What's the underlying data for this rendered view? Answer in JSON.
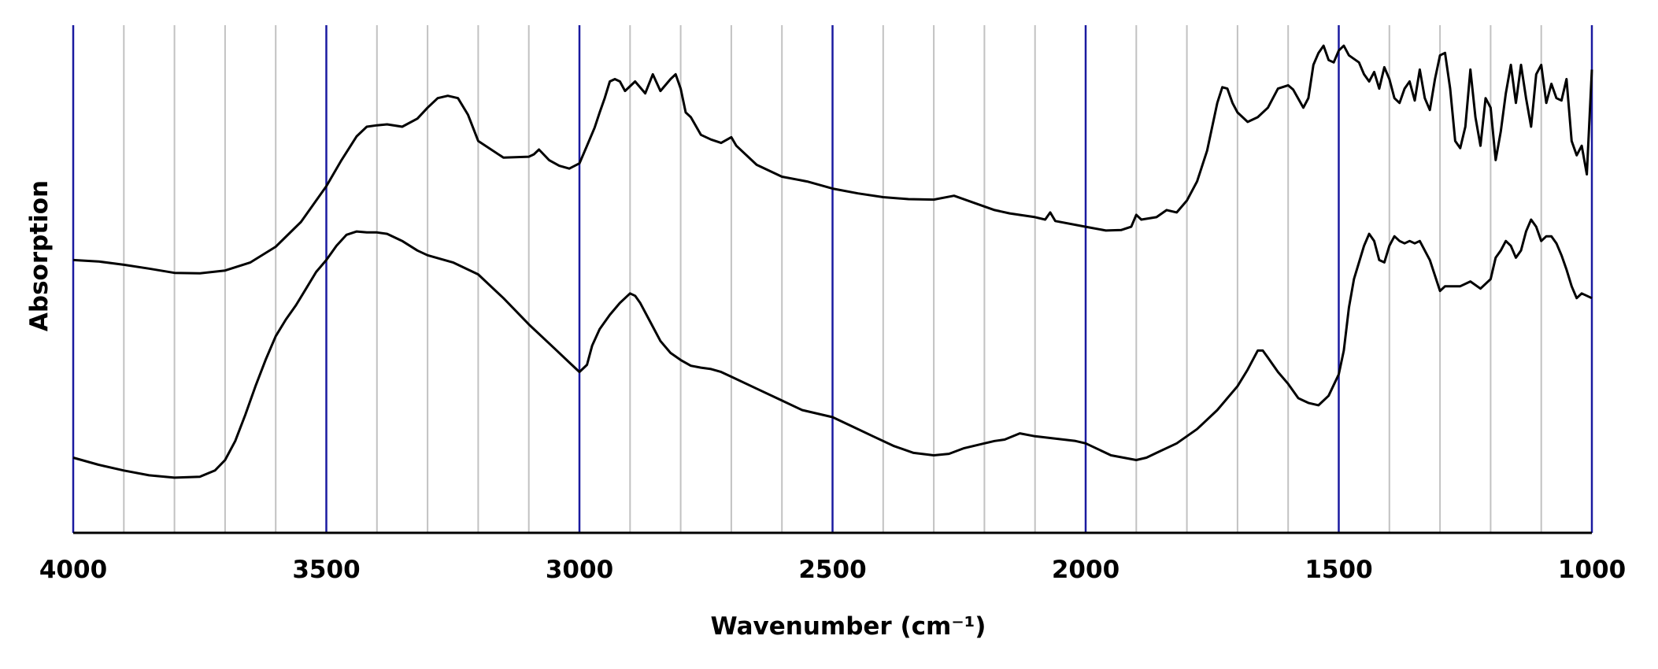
{
  "chart_data": {
    "type": "line",
    "xlabel": "Wavenumber (cm⁻¹)",
    "ylabel": "Absorption",
    "xlim": [
      4000,
      1000
    ],
    "x_reversed": true,
    "y_tick_labels": false,
    "major_ticks": [
      "4000",
      "3500",
      "3000",
      "2500",
      "2000",
      "1500",
      "1000"
    ],
    "major_tick_values": [
      4000,
      3500,
      3000,
      2500,
      2000,
      1500,
      1000
    ],
    "minor_grid_step": 100,
    "major_grid_color": "#1a1aa0",
    "minor_grid_color": "#c2c2c2",
    "line_color": "#000000",
    "ylim": [
      0,
      100
    ],
    "series": [
      {
        "x": [
          4000,
          3950,
          3900,
          3850,
          3800,
          3750,
          3700,
          3650,
          3600,
          3550,
          3500,
          3470,
          3440,
          3420,
          3400,
          3380,
          3350,
          3320,
          3300,
          3280,
          3260,
          3240,
          3220,
          3200,
          3150,
          3100,
          3090,
          3080,
          3060,
          3040,
          3020,
          3000,
          2985,
          2970,
          2960,
          2950,
          2940,
          2930,
          2920,
          2910,
          2890,
          2870,
          2855,
          2840,
          2820,
          2810,
          2800,
          2790,
          2780,
          2760,
          2740,
          2720,
          2700,
          2690,
          2650,
          2600,
          2550,
          2500,
          2450,
          2400,
          2350,
          2300,
          2260,
          2220,
          2180,
          2150,
          2100,
          2080,
          2070,
          2060,
          2000,
          1960,
          1930,
          1910,
          1900,
          1890,
          1860,
          1840,
          1820,
          1800,
          1780,
          1760,
          1740,
          1730,
          1720,
          1710,
          1700,
          1680,
          1660,
          1640,
          1620,
          1600,
          1590,
          1570,
          1560,
          1550,
          1540,
          1530,
          1520,
          1510,
          1500,
          1490,
          1480,
          1460,
          1450,
          1440,
          1430,
          1420,
          1410,
          1400,
          1390,
          1380,
          1370,
          1360,
          1350,
          1340,
          1330,
          1320,
          1310,
          1300,
          1290,
          1280,
          1270,
          1260,
          1250,
          1240,
          1230,
          1220,
          1210,
          1200,
          1190,
          1180,
          1170,
          1160,
          1150,
          1140,
          1130,
          1120,
          1110,
          1100,
          1090,
          1080,
          1070,
          1060,
          1050,
          1040,
          1030,
          1020,
          1010,
          1000
        ],
        "y": [
          52.0,
          51.7,
          51.0,
          50.2,
          49.3,
          49.2,
          49.8,
          51.5,
          54.8,
          60.0,
          67.5,
          73.0,
          78.0,
          80.0,
          80.3,
          80.5,
          80.0,
          81.7,
          84.0,
          86.0,
          86.5,
          86.0,
          82.5,
          77.0,
          73.5,
          73.7,
          74.2,
          75.2,
          73.0,
          71.8,
          71.2,
          72.3,
          76.0,
          79.8,
          83.0,
          86.0,
          89.5,
          90.0,
          89.5,
          87.5,
          89.5,
          87.0,
          91.0,
          87.5,
          90.0,
          91.0,
          88.0,
          83.0,
          82.0,
          78.3,
          77.3,
          76.6,
          77.8,
          76.0,
          72.0,
          69.5,
          68.5,
          67.0,
          66.0,
          65.2,
          64.8,
          64.7,
          65.5,
          64.0,
          62.5,
          61.8,
          61.0,
          60.5,
          62.0,
          60.2,
          59.0,
          58.2,
          58.3,
          59.0,
          61.5,
          60.5,
          61.0,
          62.5,
          62.0,
          64.5,
          68.5,
          75.0,
          85.0,
          88.3,
          88.0,
          85.0,
          83.0,
          81.0,
          82.0,
          84.0,
          88.0,
          88.7,
          87.8,
          84.0,
          86.0,
          93.0,
          95.5,
          97.0,
          94.0,
          93.5,
          96.0,
          97.0,
          95.0,
          93.5,
          91.0,
          89.5,
          91.5,
          88.0,
          92.5,
          90.0,
          86.0,
          85.0,
          88.0,
          89.5,
          85.5,
          92.0,
          86.0,
          83.5,
          90.0,
          95.0,
          95.5,
          88.0,
          77.0,
          75.5,
          80.0,
          92.0,
          82.0,
          76.0,
          86.0,
          84.0,
          73.0,
          79.0,
          87.0,
          93.0,
          85.0,
          93.0,
          86.0,
          80.0,
          91.0,
          93.0,
          85.0,
          89.0,
          86.0,
          85.5,
          90.0,
          77.0,
          74.0,
          76.0,
          70.0,
          92.0
        ]
      },
      {
        "x": [
          4000,
          3950,
          3900,
          3850,
          3800,
          3750,
          3720,
          3700,
          3680,
          3660,
          3640,
          3620,
          3600,
          3580,
          3560,
          3540,
          3520,
          3500,
          3480,
          3460,
          3440,
          3420,
          3400,
          3380,
          3350,
          3320,
          3300,
          3250,
          3200,
          3150,
          3100,
          3050,
          3020,
          3000,
          2985,
          2975,
          2960,
          2940,
          2920,
          2900,
          2890,
          2880,
          2860,
          2840,
          2820,
          2800,
          2780,
          2760,
          2740,
          2720,
          2700,
          2650,
          2600,
          2560,
          2520,
          2500,
          2460,
          2420,
          2380,
          2340,
          2300,
          2270,
          2240,
          2200,
          2180,
          2160,
          2130,
          2100,
          2060,
          2020,
          2000,
          1950,
          1900,
          1880,
          1860,
          1820,
          1780,
          1740,
          1720,
          1700,
          1680,
          1660,
          1650,
          1640,
          1630,
          1620,
          1600,
          1580,
          1560,
          1540,
          1520,
          1500,
          1490,
          1480,
          1470,
          1460,
          1450,
          1440,
          1430,
          1420,
          1410,
          1400,
          1390,
          1380,
          1370,
          1360,
          1350,
          1340,
          1320,
          1300,
          1290,
          1280,
          1260,
          1240,
          1220,
          1200,
          1190,
          1180,
          1170,
          1160,
          1150,
          1140,
          1130,
          1120,
          1110,
          1100,
          1090,
          1080,
          1070,
          1060,
          1050,
          1040,
          1030,
          1020,
          1010,
          1000
        ],
        "y": [
          10.5,
          9.0,
          7.8,
          6.8,
          6.3,
          6.5,
          7.8,
          10.0,
          14.0,
          19.5,
          25.5,
          31.0,
          36.0,
          39.5,
          42.5,
          46.0,
          49.5,
          52.0,
          55.0,
          57.3,
          58.0,
          57.8,
          57.8,
          57.5,
          56.0,
          54.0,
          53.0,
          51.5,
          49.0,
          44.0,
          38.5,
          33.5,
          30.5,
          28.5,
          30.0,
          34.0,
          37.5,
          40.5,
          43.0,
          45.0,
          44.5,
          43.0,
          39.0,
          35.0,
          32.5,
          31.0,
          29.8,
          29.4,
          29.1,
          28.5,
          27.5,
          25.0,
          22.5,
          20.5,
          19.5,
          19.0,
          17.0,
          15.0,
          13.0,
          11.5,
          11.0,
          11.3,
          12.5,
          13.5,
          14.0,
          14.3,
          15.6,
          15.0,
          14.5,
          14.0,
          13.5,
          11.0,
          10.0,
          10.5,
          11.5,
          13.5,
          16.5,
          20.5,
          23.0,
          25.5,
          29.0,
          33.0,
          33.0,
          31.5,
          30.0,
          28.5,
          26.0,
          23.0,
          22.0,
          21.5,
          23.5,
          28.0,
          33.0,
          42.0,
          48.0,
          51.5,
          55.0,
          57.5,
          56.0,
          52.0,
          51.5,
          55.0,
          57.0,
          56.0,
          55.5,
          56.0,
          55.5,
          56.0,
          52.0,
          45.5,
          46.5,
          46.5,
          46.5,
          47.5,
          46.0,
          48.0,
          52.5,
          54.0,
          56.0,
          55.0,
          52.5,
          54.0,
          58.0,
          60.5,
          59.0,
          56.0,
          57.0,
          57.0,
          55.5,
          53.0,
          50.0,
          46.5,
          44.0,
          45.0,
          44.5,
          44.0
        ]
      }
    ]
  }
}
